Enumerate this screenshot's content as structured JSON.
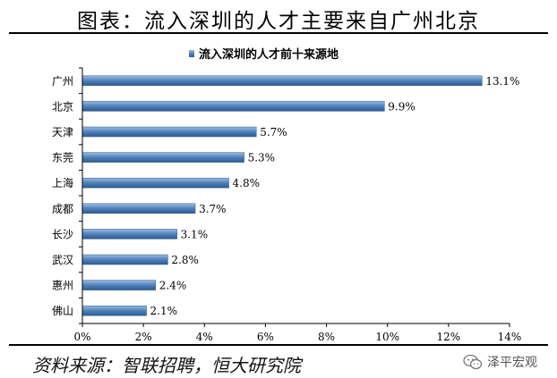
{
  "page": {
    "title": "图表：流入深圳的人才主要来自广州北京",
    "source": "资料来源：智联招聘，恒大研究院",
    "watermark_text": "泽平宏观",
    "watermark_icon": "wechat-icon"
  },
  "chart_data": {
    "type": "bar",
    "orientation": "horizontal",
    "legend": [
      "流入深圳的人才前十来源地"
    ],
    "legend_position": "top",
    "categories": [
      "广州",
      "北京",
      "天津",
      "东莞",
      "上海",
      "成都",
      "长沙",
      "武汉",
      "惠州",
      "佛山"
    ],
    "series": [
      {
        "name": "流入深圳的人才前十来源地",
        "values": [
          13.1,
          9.9,
          5.7,
          5.3,
          4.8,
          3.7,
          3.1,
          2.8,
          2.4,
          2.1
        ],
        "labels": [
          "13.1%",
          "9.9%",
          "5.7%",
          "5.3%",
          "4.8%",
          "3.7%",
          "3.1%",
          "2.8%",
          "2.4%",
          "2.1%"
        ]
      }
    ],
    "xlim": [
      0,
      14
    ],
    "xticks": [
      0,
      2,
      4,
      6,
      8,
      10,
      12,
      14
    ],
    "xtick_labels": [
      "0%",
      "2%",
      "4%",
      "6%",
      "8%",
      "10%",
      "12%",
      "14%"
    ],
    "grid": false,
    "colors": {
      "bar": "#4f81bd",
      "bar_light": "#9dbbe0",
      "bar_dark": "#2f5b8c"
    }
  }
}
